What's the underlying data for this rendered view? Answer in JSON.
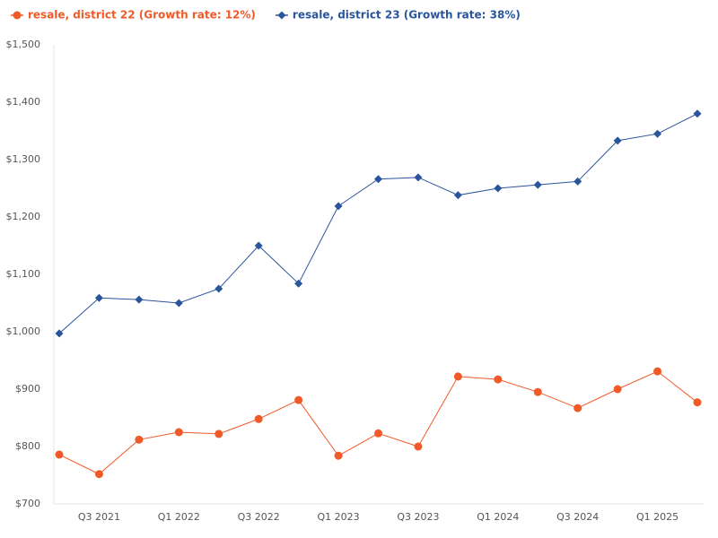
{
  "chart_data": {
    "type": "line",
    "categories": [
      null,
      "Q3 2021",
      null,
      "Q1 2022",
      null,
      "Q3 2022",
      null,
      "Q1 2023",
      null,
      "Q3 2023",
      null,
      "Q1 2024",
      null,
      "Q3 2024",
      null,
      "Q1 2025",
      null
    ],
    "series": [
      {
        "name": "resale, district 22 (Growth rate: 12%)",
        "color": "#f05a28",
        "marker": "circle",
        "values": [
          786,
          752,
          812,
          825,
          822,
          848,
          881,
          784,
          823,
          800,
          922,
          917,
          895,
          867,
          900,
          931,
          877
        ]
      },
      {
        "name": "resale, district 23 (Growth rate: 38%)",
        "color": "#2a559c",
        "marker": "diamond",
        "values": [
          997,
          1059,
          1056,
          1050,
          1075,
          1150,
          1084,
          1219,
          1266,
          1269,
          1238,
          1250,
          1256,
          1262,
          1333,
          1345,
          1380
        ]
      }
    ],
    "ylim": [
      700,
      1500
    ],
    "yticks": [
      {
        "value": 700,
        "label": "$700"
      },
      {
        "value": 800,
        "label": "$800"
      },
      {
        "value": 900,
        "label": "$900"
      },
      {
        "value": 1000,
        "label": "$1,000"
      },
      {
        "value": 1100,
        "label": "$1,100"
      },
      {
        "value": 1200,
        "label": "$1,200"
      },
      {
        "value": 1300,
        "label": "$1,300"
      },
      {
        "value": 1400,
        "label": "$1,400"
      },
      {
        "value": 1500,
        "label": "$1,500"
      }
    ],
    "grid": false
  }
}
